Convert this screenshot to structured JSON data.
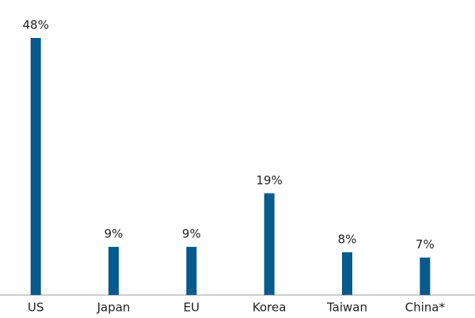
{
  "chart_data": {
    "type": "bar",
    "categories": [
      "US",
      "Japan",
      "EU",
      "Korea",
      "Taiwan",
      "China*"
    ],
    "values": [
      48,
      9,
      9,
      19,
      8,
      7
    ],
    "value_labels": [
      "48%",
      "9%",
      "9%",
      "19%",
      "8%",
      "7%"
    ],
    "color": "#065a8c"
  }
}
